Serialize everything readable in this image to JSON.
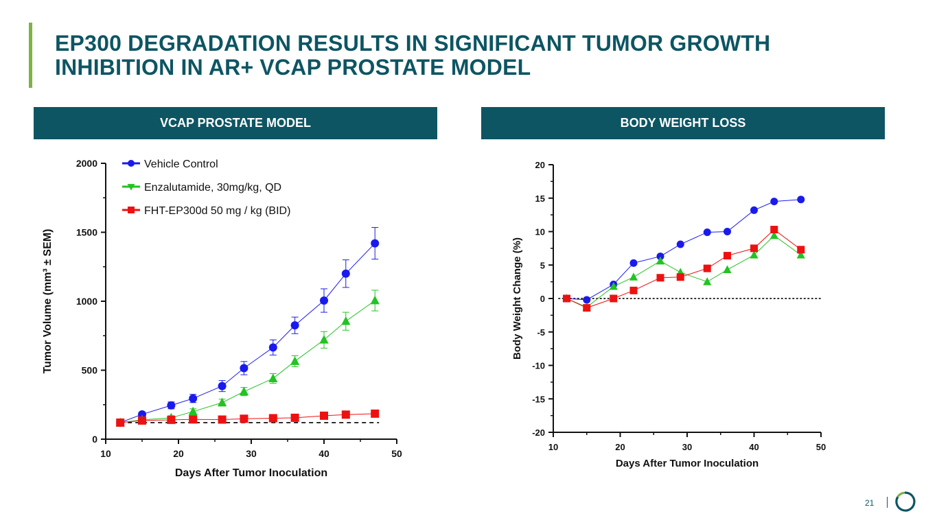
{
  "slide": {
    "title_line1": "EP300 DEGRADATION RESULTS IN SIGNIFICANT TUMOR GROWTH",
    "title_line2": "INHIBITION IN AR+ VCAP PROSTATE MODEL",
    "page_number": "21",
    "accent_color": "#0d5563",
    "accent_green": "#7cb342"
  },
  "panels": {
    "left_header": "VCAP PROSTATE MODEL",
    "right_header": "BODY WEIGHT LOSS"
  },
  "chart_data": [
    {
      "type": "line",
      "title": "VCAP PROSTATE MODEL",
      "xlabel": "Days After Tumor Inoculation",
      "ylabel": "Tumor Volume (mm³ ± SEM)",
      "xlim": [
        10,
        50
      ],
      "ylim": [
        0,
        2000
      ],
      "xticks": [
        10,
        20,
        30,
        40,
        50
      ],
      "yticks": [
        0,
        500,
        1000,
        1500,
        2000
      ],
      "baseline": 120,
      "legend_position": "top-left",
      "series": [
        {
          "name": "Vehicle Control",
          "color": "#1a1aee",
          "marker": "circle",
          "x": [
            12,
            15,
            19,
            22,
            26,
            29,
            33,
            36,
            40,
            43,
            47
          ],
          "y": [
            120,
            180,
            245,
            295,
            385,
            515,
            665,
            825,
            1005,
            1200,
            1420
          ],
          "err": [
            12,
            15,
            25,
            30,
            40,
            48,
            55,
            60,
            85,
            100,
            115
          ]
        },
        {
          "name": "Enzalutamide, 30mg/kg, QD",
          "color": "#22c322",
          "marker": "triangle",
          "x": [
            12,
            15,
            19,
            22,
            26,
            29,
            33,
            36,
            40,
            43,
            47
          ],
          "y": [
            120,
            140,
            155,
            200,
            265,
            345,
            440,
            565,
            720,
            855,
            1005
          ],
          "err": [
            10,
            12,
            15,
            20,
            25,
            30,
            35,
            40,
            60,
            65,
            75
          ]
        },
        {
          "name": "FHT-EP300d 50 mg / kg (BID)",
          "color": "#ee1111",
          "marker": "square",
          "x": [
            12,
            15,
            19,
            22,
            26,
            29,
            33,
            36,
            40,
            43,
            47
          ],
          "y": [
            120,
            135,
            140,
            143,
            142,
            148,
            152,
            155,
            170,
            178,
            185
          ],
          "err": [
            8,
            8,
            8,
            8,
            8,
            10,
            10,
            12,
            12,
            15,
            20
          ]
        }
      ]
    },
    {
      "type": "line",
      "title": "BODY WEIGHT LOSS",
      "xlabel": "Days After Tumor Inoculation",
      "ylabel": "Body Weight Change (%)",
      "xlim": [
        10,
        50
      ],
      "ylim": [
        -20,
        20
      ],
      "xticks": [
        10,
        20,
        30,
        40,
        50
      ],
      "yticks": [
        -20,
        -15,
        -10,
        -5,
        0,
        5,
        10,
        15,
        20
      ],
      "reference_line": 0,
      "series": [
        {
          "name": "Vehicle Control",
          "color": "#1a1aee",
          "marker": "circle",
          "x": [
            12,
            15,
            19,
            22,
            26,
            29,
            33,
            36,
            40,
            43,
            47
          ],
          "y": [
            0,
            -0.2,
            2.1,
            5.3,
            6.3,
            8.1,
            9.9,
            10.0,
            13.2,
            14.5,
            14.8
          ]
        },
        {
          "name": "Enzalutamide, 30mg/kg, QD",
          "color": "#22c322",
          "marker": "triangle",
          "x": [
            12,
            15,
            19,
            22,
            26,
            29,
            33,
            36,
            40,
            43,
            47
          ],
          "y": [
            0,
            -1.3,
            1.8,
            3.2,
            5.6,
            3.9,
            2.5,
            4.3,
            6.5,
            9.4,
            6.5
          ]
        },
        {
          "name": "FHT-EP300d 50 mg / kg (BID)",
          "color": "#ee1111",
          "marker": "square",
          "x": [
            12,
            15,
            19,
            22,
            26,
            29,
            33,
            36,
            40,
            43,
            47
          ],
          "y": [
            0,
            -1.4,
            0.0,
            1.2,
            3.1,
            3.2,
            4.5,
            6.4,
            7.5,
            10.3,
            7.3
          ]
        }
      ]
    }
  ]
}
